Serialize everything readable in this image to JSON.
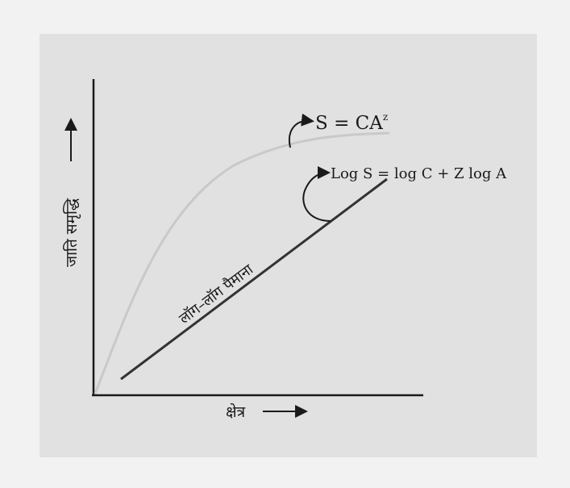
{
  "figure": {
    "y_axis_label": "जाति समृद्धि",
    "x_axis_label": "क्षेत्र",
    "curve_equation_base": "S = CA",
    "curve_equation_exponent": "z",
    "line_equation": "Log S = log C + Z log A",
    "line_caption": "लॉग–लॉग पैमाना"
  },
  "colors": {
    "page_background": "#f2f2f2",
    "panel_background": "#e1e1e1",
    "axis": "#1a1a1a",
    "curve": "#c9c9c9",
    "line": "#333333"
  }
}
